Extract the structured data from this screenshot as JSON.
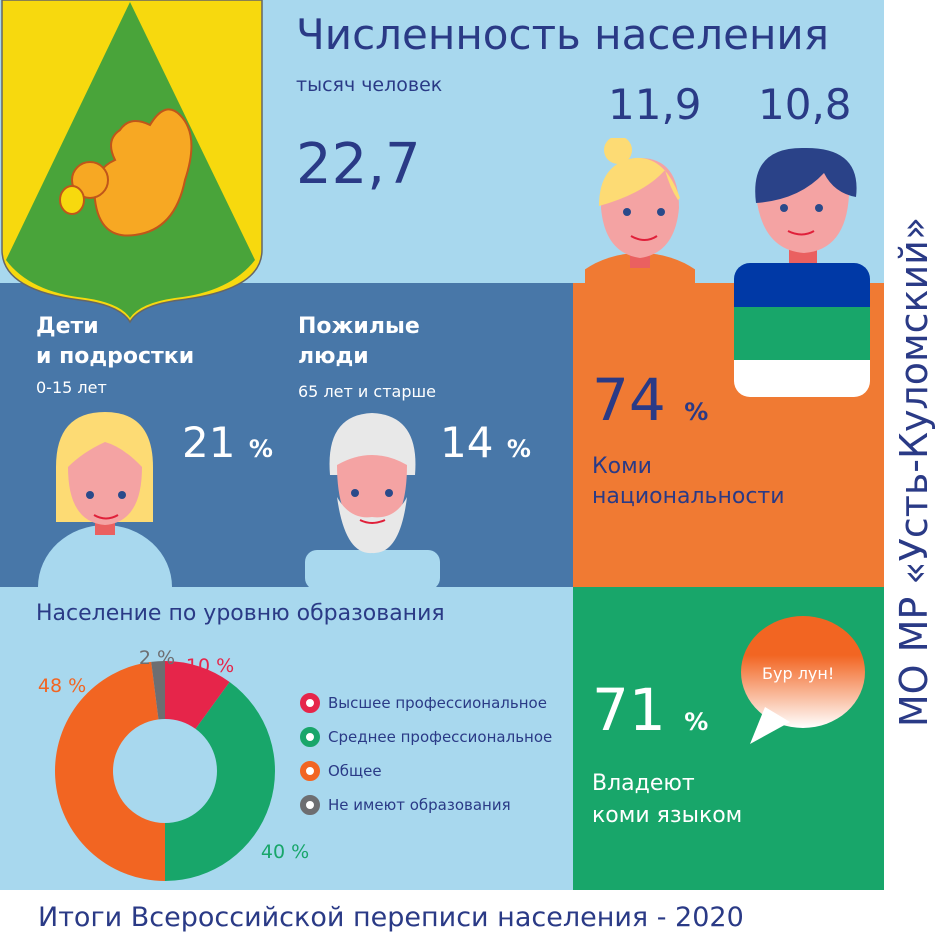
{
  "header": {
    "title": "Численность населения",
    "unit": "тысяч человек",
    "total": "22,7",
    "women": "11,9",
    "men": "10,8"
  },
  "children": {
    "title_line1": "Дети",
    "title_line2": "и подростки",
    "age": "0-15 лет",
    "value": "21",
    "pct": "%"
  },
  "elderly": {
    "title_line1": "Пожилые",
    "title_line2": "люди",
    "age": "65 лет и старше",
    "value": "14",
    "pct": "%"
  },
  "komi": {
    "value": "74",
    "pct": "%",
    "label_line1": "Коми",
    "label_line2": "национальности"
  },
  "language": {
    "value": "71",
    "pct": "%",
    "label_line1": "Владеют",
    "label_line2": "коми языком",
    "bubble": "Бур лун!"
  },
  "side_title": "МО МР «Усть-Куломский»",
  "footer": "Итоги Всероссийской переписи населения - 2020",
  "chart_data": {
    "type": "pie",
    "title": "Население по уровню образования",
    "donut": true,
    "categories": [
      "Высшее профессиональное",
      "Среднее профессиональное",
      "Общее",
      "Не имеют образования"
    ],
    "values": [
      10,
      40,
      48,
      2
    ],
    "labels": [
      "10 %",
      "40 %",
      "48 %",
      "2 %"
    ],
    "colors": [
      "#e6254a",
      "#18a66a",
      "#f26522",
      "#6d6e71"
    ],
    "legend": "right"
  }
}
